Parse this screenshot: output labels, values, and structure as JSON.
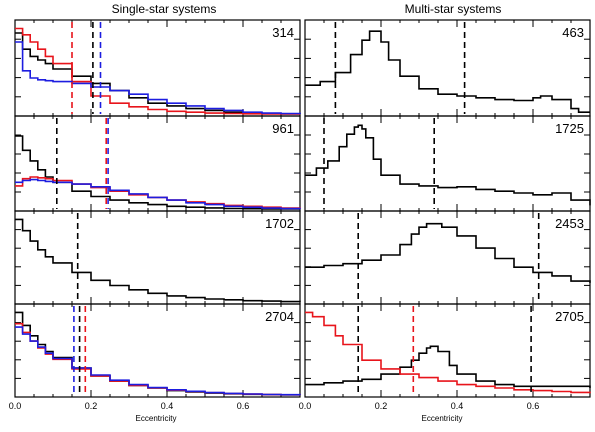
{
  "titles": [
    "Single-star systems",
    "Multi-star systems"
  ],
  "xlabel": "Eccentricity",
  "colors": {
    "black": "#000000",
    "red": "#e8141b",
    "blue": "#1d1de0"
  },
  "chart_data": [
    {
      "type": "line",
      "panel": "left-1",
      "label": "314",
      "xlim": [
        0,
        0.75
      ],
      "ticks": [
        0.0,
        0.2,
        0.4,
        0.6
      ],
      "series": [
        {
          "color": "black",
          "x": [
            0,
            0.02,
            0.04,
            0.06,
            0.08,
            0.1,
            0.15,
            0.2,
            0.25,
            0.3,
            0.35,
            0.4,
            0.45,
            0.5,
            0.55,
            0.6,
            0.65,
            0.7,
            0.75
          ],
          "y": [
            0.9,
            0.72,
            0.64,
            0.6,
            0.56,
            0.5,
            0.42,
            0.34,
            0.26,
            0.18,
            0.12,
            0.09,
            0.06,
            0.04,
            0.02,
            0.01,
            0.005,
            0.002,
            0.0
          ]
        },
        {
          "color": "red",
          "x": [
            0,
            0.02,
            0.04,
            0.06,
            0.08,
            0.1,
            0.15,
            0.2,
            0.25,
            0.3,
            0.35,
            0.4,
            0.45,
            0.5,
            0.55,
            0.6,
            0.65,
            0.7,
            0.75
          ],
          "y": [
            0.95,
            0.88,
            0.8,
            0.72,
            0.64,
            0.56,
            0.36,
            0.2,
            0.12,
            0.08,
            0.05,
            0.03,
            0.02,
            0.01,
            0.005,
            0.002,
            0.0,
            0.0,
            0.0
          ]
        },
        {
          "color": "blue",
          "x": [
            0,
            0.02,
            0.04,
            0.06,
            0.08,
            0.1,
            0.15,
            0.2,
            0.25,
            0.3,
            0.35,
            0.4,
            0.45,
            0.5,
            0.55,
            0.6,
            0.65,
            0.7,
            0.75
          ],
          "y": [
            0.8,
            0.48,
            0.4,
            0.38,
            0.37,
            0.36,
            0.34,
            0.3,
            0.26,
            0.22,
            0.16,
            0.12,
            0.09,
            0.06,
            0.04,
            0.02,
            0.01,
            0.005,
            0.0
          ]
        }
      ],
      "vlines": [
        {
          "color": "red",
          "x": 0.15
        },
        {
          "color": "black",
          "x": 0.205
        },
        {
          "color": "blue",
          "x": 0.225
        }
      ]
    },
    {
      "type": "line",
      "panel": "left-2",
      "label": "961",
      "xlim": [
        0,
        0.75
      ],
      "ticks": [
        0.0,
        0.2,
        0.4,
        0.6
      ],
      "series": [
        {
          "color": "black",
          "x": [
            0,
            0.02,
            0.04,
            0.06,
            0.08,
            0.1,
            0.15,
            0.2,
            0.25,
            0.3,
            0.35,
            0.4,
            0.45,
            0.5,
            0.55,
            0.6,
            0.65,
            0.7,
            0.75
          ],
          "y": [
            0.82,
            0.66,
            0.54,
            0.44,
            0.36,
            0.3,
            0.2,
            0.14,
            0.1,
            0.07,
            0.05,
            0.03,
            0.02,
            0.012,
            0.006,
            0.003,
            0.001,
            0.0,
            0.0
          ]
        },
        {
          "color": "red",
          "x": [
            0,
            0.02,
            0.04,
            0.06,
            0.08,
            0.1,
            0.15,
            0.2,
            0.25,
            0.3,
            0.35,
            0.4,
            0.45,
            0.5,
            0.55,
            0.6,
            0.65,
            0.7,
            0.75
          ],
          "y": [
            0.26,
            0.34,
            0.36,
            0.35,
            0.34,
            0.32,
            0.28,
            0.24,
            0.2,
            0.16,
            0.13,
            0.1,
            0.08,
            0.06,
            0.04,
            0.03,
            0.02,
            0.01,
            0.0
          ]
        },
        {
          "color": "blue",
          "x": [
            0,
            0.02,
            0.04,
            0.06,
            0.08,
            0.1,
            0.15,
            0.2,
            0.25,
            0.3,
            0.35,
            0.4,
            0.45,
            0.5,
            0.55,
            0.6,
            0.65,
            0.7,
            0.75
          ],
          "y": [
            0.3,
            0.32,
            0.33,
            0.32,
            0.31,
            0.3,
            0.28,
            0.25,
            0.21,
            0.17,
            0.13,
            0.1,
            0.07,
            0.05,
            0.03,
            0.02,
            0.01,
            0.005,
            0.0
          ]
        }
      ],
      "vlines": [
        {
          "color": "black",
          "x": 0.11
        },
        {
          "color": "red",
          "x": 0.24
        },
        {
          "color": "blue",
          "x": 0.245
        }
      ]
    },
    {
      "type": "line",
      "panel": "left-3",
      "label": "1702",
      "xlim": [
        0,
        0.75
      ],
      "ticks": [
        0.0,
        0.2,
        0.4,
        0.6
      ],
      "series": [
        {
          "color": "black",
          "x": [
            0,
            0.02,
            0.04,
            0.06,
            0.08,
            0.1,
            0.15,
            0.2,
            0.25,
            0.3,
            0.35,
            0.4,
            0.45,
            0.5,
            0.55,
            0.6,
            0.65,
            0.7,
            0.75
          ],
          "y": [
            0.95,
            0.82,
            0.7,
            0.6,
            0.52,
            0.45,
            0.34,
            0.25,
            0.19,
            0.14,
            0.1,
            0.07,
            0.05,
            0.035,
            0.025,
            0.015,
            0.01,
            0.005,
            0.002
          ]
        }
      ],
      "vlines": [
        {
          "color": "black",
          "x": 0.165
        }
      ]
    },
    {
      "type": "line",
      "panel": "left-4",
      "label": "2704",
      "xlim": [
        0,
        0.75
      ],
      "ticks": [
        0.0,
        0.2,
        0.4,
        0.6
      ],
      "series": [
        {
          "color": "black",
          "x": [
            0,
            0.02,
            0.04,
            0.06,
            0.08,
            0.1,
            0.15,
            0.2,
            0.25,
            0.3,
            0.35,
            0.4,
            0.45,
            0.5,
            0.55,
            0.6,
            0.65,
            0.7,
            0.75
          ],
          "y": [
            0.95,
            0.8,
            0.68,
            0.58,
            0.5,
            0.43,
            0.31,
            0.22,
            0.16,
            0.11,
            0.08,
            0.05,
            0.035,
            0.022,
            0.014,
            0.008,
            0.004,
            0.002,
            0.001
          ]
        },
        {
          "color": "red",
          "x": [
            0,
            0.02,
            0.04,
            0.06,
            0.08,
            0.1,
            0.15,
            0.2,
            0.25,
            0.3,
            0.35,
            0.4,
            0.45,
            0.5,
            0.55,
            0.6,
            0.65,
            0.7,
            0.75
          ],
          "y": [
            0.82,
            0.72,
            0.62,
            0.54,
            0.47,
            0.41,
            0.3,
            0.22,
            0.16,
            0.11,
            0.08,
            0.055,
            0.04,
            0.026,
            0.016,
            0.01,
            0.005,
            0.002,
            0.001
          ]
        },
        {
          "color": "blue",
          "x": [
            0,
            0.02,
            0.04,
            0.06,
            0.08,
            0.1,
            0.15,
            0.2,
            0.25,
            0.3,
            0.35,
            0.4,
            0.45,
            0.5,
            0.55,
            0.6,
            0.65,
            0.7,
            0.75
          ],
          "y": [
            0.78,
            0.7,
            0.62,
            0.55,
            0.48,
            0.42,
            0.31,
            0.23,
            0.17,
            0.12,
            0.085,
            0.06,
            0.042,
            0.028,
            0.018,
            0.011,
            0.006,
            0.003,
            0.001
          ]
        }
      ],
      "vlines": [
        {
          "color": "blue",
          "x": 0.155
        },
        {
          "color": "black",
          "x": 0.17
        },
        {
          "color": "red",
          "x": 0.185
        }
      ]
    },
    {
      "type": "line",
      "panel": "right-1",
      "label": "463",
      "xlim": [
        0,
        0.75
      ],
      "ticks": [
        0.0,
        0.2,
        0.4,
        0.6
      ],
      "series": [
        {
          "color": "black",
          "x": [
            0,
            0.04,
            0.08,
            0.12,
            0.15,
            0.17,
            0.18,
            0.2,
            0.22,
            0.25,
            0.3,
            0.35,
            0.4,
            0.45,
            0.5,
            0.55,
            0.6,
            0.62,
            0.65,
            0.7,
            0.72,
            0.75
          ],
          "y": [
            0.32,
            0.36,
            0.46,
            0.66,
            0.82,
            0.92,
            0.92,
            0.8,
            0.6,
            0.42,
            0.28,
            0.22,
            0.2,
            0.18,
            0.16,
            0.15,
            0.18,
            0.2,
            0.16,
            0.06,
            0.02,
            0.02
          ]
        }
      ],
      "vlines": [
        {
          "color": "black",
          "x": 0.08
        },
        {
          "color": "black",
          "x": 0.42
        }
      ]
    },
    {
      "type": "line",
      "panel": "right-2",
      "label": "1725",
      "xlim": [
        0,
        0.75
      ],
      "ticks": [
        0.0,
        0.2,
        0.4,
        0.6
      ],
      "series": [
        {
          "color": "black",
          "x": [
            0,
            0.03,
            0.06,
            0.09,
            0.11,
            0.13,
            0.14,
            0.15,
            0.16,
            0.18,
            0.2,
            0.25,
            0.3,
            0.35,
            0.4,
            0.45,
            0.5,
            0.55,
            0.6,
            0.65,
            0.7,
            0.75
          ],
          "y": [
            0.38,
            0.46,
            0.54,
            0.7,
            0.84,
            0.92,
            0.94,
            0.9,
            0.8,
            0.56,
            0.38,
            0.28,
            0.26,
            0.24,
            0.25,
            0.22,
            0.2,
            0.18,
            0.16,
            0.18,
            0.1,
            0.04
          ]
        }
      ],
      "vlines": [
        {
          "color": "black",
          "x": 0.05
        },
        {
          "color": "black",
          "x": 0.34
        }
      ]
    },
    {
      "type": "line",
      "panel": "right-3",
      "label": "2453",
      "xlim": [
        0,
        0.75
      ],
      "ticks": [
        0.0,
        0.2,
        0.4,
        0.6
      ],
      "series": [
        {
          "color": "black",
          "x": [
            0,
            0.05,
            0.1,
            0.15,
            0.2,
            0.25,
            0.28,
            0.3,
            0.32,
            0.34,
            0.36,
            0.4,
            0.45,
            0.5,
            0.55,
            0.6,
            0.65,
            0.7,
            0.75
          ],
          "y": [
            0.4,
            0.42,
            0.44,
            0.48,
            0.54,
            0.66,
            0.78,
            0.86,
            0.9,
            0.9,
            0.86,
            0.76,
            0.62,
            0.5,
            0.4,
            0.34,
            0.3,
            0.24,
            0.22
          ]
        }
      ],
      "vlines": [
        {
          "color": "black",
          "x": 0.14
        },
        {
          "color": "black",
          "x": 0.615
        }
      ]
    },
    {
      "type": "line",
      "panel": "right-4",
      "label": "2705",
      "xlim": [
        0,
        0.75
      ],
      "ticks": [
        0.0,
        0.2,
        0.4,
        0.6
      ],
      "series": [
        {
          "color": "black",
          "x": [
            0,
            0.05,
            0.1,
            0.15,
            0.2,
            0.25,
            0.28,
            0.3,
            0.32,
            0.33,
            0.35,
            0.38,
            0.4,
            0.45,
            0.5,
            0.55,
            0.6,
            0.65,
            0.7,
            0.75
          ],
          "y": [
            0.12,
            0.14,
            0.16,
            0.18,
            0.24,
            0.32,
            0.4,
            0.48,
            0.54,
            0.56,
            0.5,
            0.34,
            0.24,
            0.16,
            0.12,
            0.1,
            0.1,
            0.1,
            0.1,
            0.08
          ]
        },
        {
          "color": "red",
          "x": [
            0,
            0.02,
            0.05,
            0.08,
            0.1,
            0.15,
            0.2,
            0.25,
            0.3,
            0.35,
            0.4,
            0.45,
            0.5,
            0.55,
            0.6,
            0.65,
            0.7,
            0.75
          ],
          "y": [
            0.95,
            0.9,
            0.8,
            0.68,
            0.58,
            0.4,
            0.3,
            0.24,
            0.2,
            0.16,
            0.12,
            0.1,
            0.08,
            0.06,
            0.05,
            0.04,
            0.03,
            0.02
          ]
        }
      ],
      "vlines": [
        {
          "color": "black",
          "x": 0.14
        },
        {
          "color": "red",
          "x": 0.285
        },
        {
          "color": "black",
          "x": 0.595
        }
      ]
    }
  ]
}
